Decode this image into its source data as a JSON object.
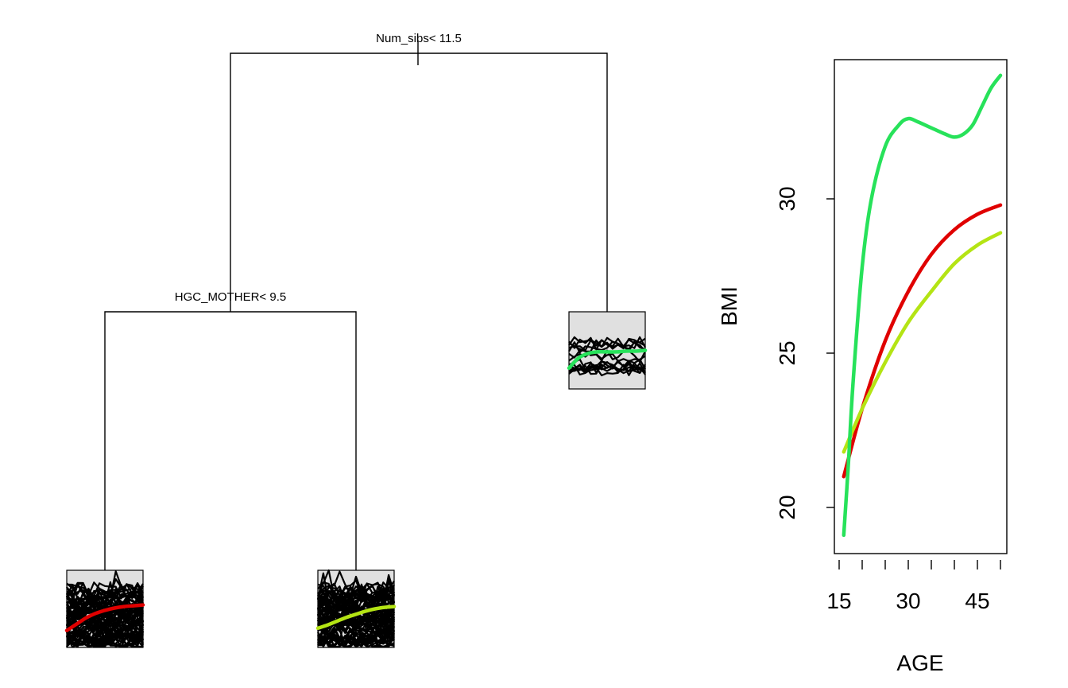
{
  "tree": {
    "splits": [
      {
        "id": "root",
        "label": "Num_sibs< 11.5"
      },
      {
        "id": "left",
        "label": "HGC_MOTHER< 9.5"
      }
    ],
    "leaves": [
      {
        "id": "leaf-1",
        "density": "dense",
        "mean_color": "#e00000",
        "mean_curve": [
          0.78,
          0.7,
          0.62,
          0.56,
          0.52,
          0.49,
          0.47,
          0.46,
          0.45
        ]
      },
      {
        "id": "leaf-2",
        "density": "dense",
        "mean_color": "#b4e414",
        "mean_curve": [
          0.75,
          0.71,
          0.66,
          0.61,
          0.57,
          0.53,
          0.5,
          0.48,
          0.47
        ]
      },
      {
        "id": "leaf-3",
        "density": "sparse",
        "mean_color": "#27e25a",
        "mean_curve": [
          0.73,
          0.6,
          0.54,
          0.52,
          0.52,
          0.52,
          0.51,
          0.51,
          0.5
        ]
      }
    ],
    "panel_fill": "#e0e0e0"
  },
  "chart_data": {
    "type": "line",
    "title": "",
    "xlabel": "AGE",
    "ylabel": "BMI",
    "xlim": [
      15,
      50
    ],
    "ylim": [
      18.5,
      34.5
    ],
    "xticks": [
      15,
      30,
      45
    ],
    "xticks_minor": [
      15,
      20,
      25,
      30,
      35,
      40,
      45,
      50
    ],
    "yticks": [
      20,
      25,
      30
    ],
    "grid": false,
    "series": [
      {
        "color": "#e00000",
        "x": [
          16,
          20,
          25,
          30,
          35,
          40,
          45,
          50
        ],
        "y": [
          21.0,
          23.2,
          25.4,
          27.0,
          28.2,
          29.0,
          29.5,
          29.8
        ]
      },
      {
        "color": "#b4e414",
        "x": [
          16,
          20,
          25,
          30,
          35,
          40,
          45,
          50
        ],
        "y": [
          21.8,
          23.2,
          24.7,
          26.0,
          27.0,
          27.9,
          28.5,
          28.9
        ]
      },
      {
        "color": "#27e25a",
        "x": [
          16,
          17,
          18,
          20,
          22,
          25,
          28,
          30,
          32,
          35,
          38,
          40,
          42,
          44,
          46,
          48,
          50
        ],
        "y": [
          19.1,
          21.4,
          24.0,
          27.8,
          30.0,
          31.7,
          32.4,
          32.6,
          32.5,
          32.3,
          32.1,
          32.0,
          32.1,
          32.4,
          33.0,
          33.6,
          34.0
        ]
      }
    ]
  }
}
